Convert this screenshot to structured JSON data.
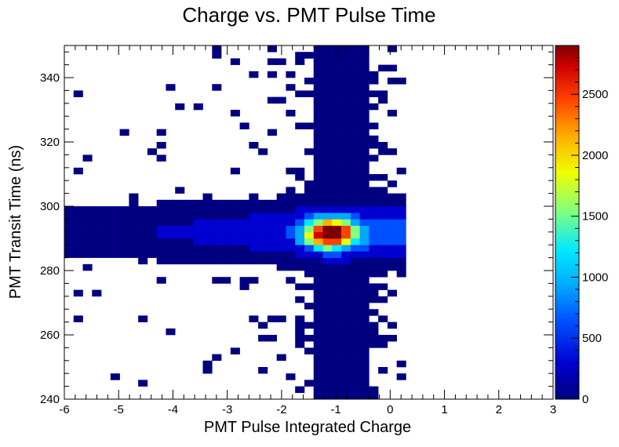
{
  "chart_data": {
    "type": "heatmap",
    "title": "Charge vs. PMT Pulse Time",
    "xlabel": "PMT Pulse Integrated Charge",
    "ylabel": "PMT Transit Time (ns)",
    "xlim": [
      -6,
      3
    ],
    "ylim": [
      240,
      350
    ],
    "x_ticks": [
      "-6",
      "-5",
      "-4",
      "-3",
      "-2",
      "-1",
      "0",
      "1",
      "2",
      "3"
    ],
    "y_ticks": [
      "240",
      "260",
      "280",
      "300",
      "320",
      "340"
    ],
    "colorbar": {
      "range": [
        0,
        2900
      ],
      "ticks": [
        "0",
        "500",
        "1000",
        "1500",
        "2000",
        "2500"
      ]
    },
    "peak": {
      "x": -1.1,
      "y": 291.5,
      "count": 2850
    },
    "colors": [
      "#000080",
      "#0000d0",
      "#0050ff",
      "#00a8ff",
      "#00e8ff",
      "#80ff80",
      "#f0ff00",
      "#ffb000",
      "#ff4000",
      "#d00000",
      "#800000"
    ]
  }
}
